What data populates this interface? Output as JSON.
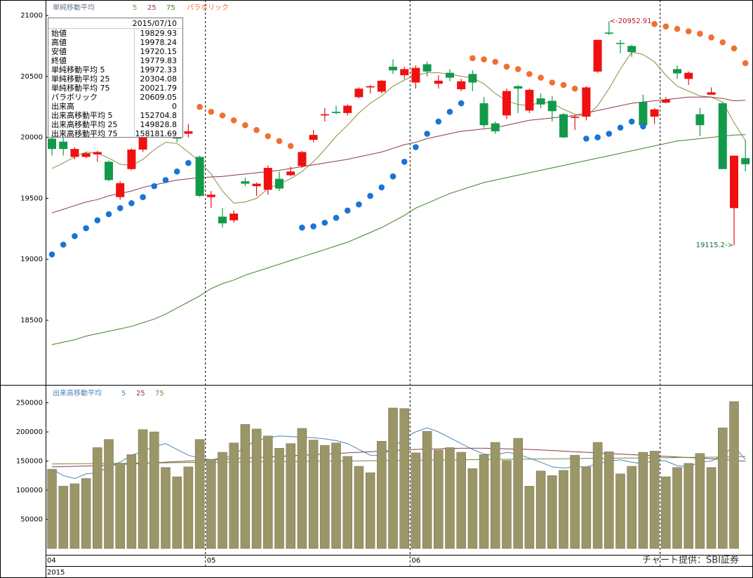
{
  "chart_data": [
    {
      "type": "candlestick",
      "legend_title": "単純移動平均",
      "categories": [
        "04",
        null,
        null,
        null,
        null,
        null,
        null,
        null,
        null,
        null,
        null,
        null,
        null,
        null,
        "05",
        null,
        null,
        null,
        null,
        null,
        null,
        null,
        null,
        null,
        null,
        null,
        null,
        null,
        null,
        null,
        null,
        null,
        "06",
        null,
        null,
        null,
        null,
        null,
        null,
        null,
        null,
        null,
        null,
        null,
        null,
        null,
        null,
        null,
        null,
        null,
        null,
        null,
        null,
        null,
        null,
        null,
        null,
        null,
        null,
        null,
        null,
        null
      ],
      "year": "2015",
      "month_dividers": [
        14,
        32,
        54
      ],
      "open": [
        19990,
        19965,
        19840,
        19840,
        19860,
        19800,
        19510,
        19740,
        19900,
        20050,
        20150,
        20080,
        20030,
        19840,
        19510,
        19350,
        19320,
        19640,
        19600,
        19570,
        19660,
        19690,
        19765,
        19980,
        20180,
        20210,
        20200,
        20330,
        20410,
        20375,
        20580,
        20510,
        20450,
        20600,
        20440,
        20530,
        20395,
        20520,
        20280,
        20115,
        20180,
        20420,
        20220,
        20320,
        20300,
        20190,
        20160,
        20170,
        20540,
        20860,
        20775,
        20750,
        20290,
        20170,
        20285,
        20560,
        20480,
        20190,
        20350,
        20280,
        19420,
        19829.93
      ],
      "high": [
        20035,
        20000,
        19920,
        19880,
        19890,
        19810,
        19640,
        19910,
        20060,
        20160,
        20170,
        20100,
        20110,
        19850,
        19560,
        19420,
        19400,
        19670,
        19630,
        19770,
        19720,
        19760,
        19890,
        20060,
        20240,
        20260,
        20270,
        20410,
        20430,
        20470,
        20640,
        20580,
        20590,
        20620,
        20510,
        20560,
        20480,
        20550,
        20330,
        20130,
        20400,
        20430,
        20400,
        20360,
        20340,
        20200,
        20180,
        20420,
        20800,
        20952.91,
        20800,
        20760,
        20350,
        20240,
        20330,
        20590,
        20540,
        20240,
        20410,
        20290,
        19850,
        19978.24
      ],
      "low": [
        19850,
        19850,
        19820,
        19830,
        19800,
        19640,
        19490,
        19730,
        19880,
        20030,
        20060,
        19960,
        20000,
        19510,
        19420,
        19260,
        19300,
        19600,
        19520,
        19530,
        19560,
        19680,
        19750,
        19960,
        20130,
        20190,
        20180,
        20320,
        20360,
        20360,
        20520,
        20480,
        20400,
        20500,
        20400,
        20460,
        20380,
        20380,
        20080,
        20030,
        20150,
        20200,
        20200,
        20240,
        20130,
        19995,
        20060,
        20140,
        20530,
        20840,
        20690,
        20660,
        20090,
        20110,
        20280,
        20480,
        20430,
        20010,
        20350,
        19740,
        19115.2,
        19720.15
      ],
      "close": [
        19905,
        19905,
        19905,
        19870,
        19880,
        19650,
        19625,
        19900,
        20050,
        20150,
        20080,
        19990,
        20050,
        19520,
        19530,
        19295,
        19375,
        19620,
        19620,
        19750,
        19580,
        19720,
        19880,
        20020,
        20190,
        20200,
        20260,
        20400,
        20420,
        20465,
        20550,
        20560,
        20570,
        20540,
        20465,
        20490,
        20460,
        20450,
        20100,
        20050,
        20380,
        20400,
        20390,
        20270,
        20215,
        20000,
        20170,
        20410,
        20800,
        20850,
        20770,
        20700,
        20100,
        20230,
        20310,
        20525,
        20530,
        20100,
        20370,
        19740,
        19850,
        19779.83
      ],
      "up_color": "#f01010",
      "down_color": "#129a4a",
      "ylim": [
        17970,
        21127
      ],
      "yticks": [
        18500,
        19000,
        19500,
        20000,
        20500,
        21000
      ],
      "series": [
        {
          "name": "5",
          "color": "#8c8a3e",
          "values": [
            19745,
            19790,
            19840,
            19880,
            19870,
            19830,
            19780,
            19770,
            19820,
            19900,
            19960,
            19950,
            19880,
            19800,
            19700,
            19560,
            19460,
            19470,
            19500,
            19580,
            19620,
            19660,
            19720,
            19800,
            19900,
            20010,
            20100,
            20200,
            20280,
            20340,
            20420,
            20470,
            20510,
            20530,
            20530,
            20520,
            20500,
            20490,
            20440,
            20360,
            20300,
            20270,
            20260,
            20290,
            20280,
            20230,
            20190,
            20170,
            20260,
            20400,
            20560,
            20700,
            20680,
            20620,
            20510,
            20420,
            20380,
            20340,
            20330,
            20290,
            20120,
            19972.33
          ]
        },
        {
          "name": "25",
          "color": "#8a3a48",
          "values": [
            19380,
            19410,
            19440,
            19470,
            19490,
            19520,
            19540,
            19560,
            19590,
            19610,
            19630,
            19650,
            19660,
            19670,
            19675,
            19680,
            19690,
            19700,
            19710,
            19720,
            19730,
            19745,
            19760,
            19775,
            19790,
            19805,
            19820,
            19840,
            19860,
            19880,
            19910,
            19940,
            19960,
            19990,
            20010,
            20030,
            20050,
            20060,
            20070,
            20080,
            20100,
            20120,
            20140,
            20150,
            20160,
            20170,
            20180,
            20200,
            20220,
            20240,
            20260,
            20280,
            20290,
            20300,
            20310,
            20320,
            20330,
            20330,
            20330,
            20320,
            20300,
            20304.08
          ]
        },
        {
          "name": "75",
          "color": "#3f7f2a",
          "values": [
            18300,
            18320,
            18340,
            18370,
            18390,
            18410,
            18430,
            18450,
            18480,
            18510,
            18550,
            18600,
            18650,
            18700,
            18760,
            18800,
            18830,
            18870,
            18900,
            18930,
            18960,
            18990,
            19020,
            19050,
            19080,
            19110,
            19140,
            19180,
            19220,
            19260,
            19310,
            19360,
            19420,
            19460,
            19500,
            19540,
            19570,
            19600,
            19630,
            19650,
            19670,
            19690,
            19710,
            19730,
            19750,
            19770,
            19790,
            19810,
            19830,
            19850,
            19870,
            19890,
            19910,
            19930,
            19950,
            19970,
            19980,
            19990,
            20000,
            20010,
            20020,
            20021.79
          ]
        }
      ],
      "sar": {
        "name": "パラボリック",
        "above_color": "#f07030",
        "below_color": "#1a73d6",
        "values": [
          19040,
          19120,
          19190,
          19255,
          19320,
          19370,
          19420,
          19460,
          19510,
          19600,
          19650,
          19720,
          19790,
          20250,
          20210,
          20180,
          20140,
          20100,
          20060,
          20010,
          19970,
          19930,
          19260,
          19270,
          19300,
          19340,
          19400,
          19450,
          19520,
          19590,
          19680,
          19800,
          19920,
          20030,
          20130,
          20210,
          20280,
          20650,
          20640,
          20620,
          20580,
          20560,
          20520,
          20490,
          20450,
          20430,
          20400,
          19990,
          20000,
          20030,
          20080,
          20130,
          20090,
          20930,
          20910,
          20890,
          20870,
          20850,
          20820,
          20780,
          20730,
          20609.05
        ]
      },
      "annotations": [
        {
          "label": "<-20952.91",
          "value": 20952.91,
          "index": 49,
          "color": "#c0102a"
        },
        {
          "label": "19115.2->",
          "value": 19115.2,
          "index": 60,
          "color": "#106a3a"
        }
      ]
    },
    {
      "type": "bar",
      "legend_title": "出来高移動平均",
      "values": [
        136000,
        107000,
        111000,
        120000,
        173000,
        187000,
        145000,
        161000,
        204000,
        200000,
        139000,
        123000,
        140000,
        187000,
        153000,
        165000,
        181000,
        213000,
        205000,
        193000,
        172000,
        180000,
        206000,
        186000,
        177000,
        181000,
        158000,
        141000,
        130000,
        184000,
        241000,
        240000,
        164000,
        201000,
        169000,
        173000,
        165000,
        137000,
        161000,
        182000,
        151000,
        189000,
        107000,
        133000,
        125000,
        134000,
        160000,
        140000,
        182000,
        166000,
        128000,
        141000,
        165000,
        167000,
        123000,
        139000,
        146000,
        163000,
        139000,
        207000,
        252000,
        0
      ],
      "color": "#9a9668",
      "ylim": [
        0,
        280700
      ],
      "yticks": [
        50000,
        100000,
        150000,
        200000,
        250000
      ],
      "series": [
        {
          "name": "5",
          "color": "#4a86b8",
          "values": [
            136000,
            125000,
            120000,
            128000,
            130000,
            140000,
            148000,
            160000,
            167000,
            175000,
            180000,
            170000,
            160000,
            155000,
            152000,
            155000,
            160000,
            175000,
            185000,
            190000,
            193000,
            192000,
            191000,
            190000,
            188000,
            185000,
            180000,
            170000,
            160000,
            160000,
            172000,
            190000,
            200000,
            207000,
            200000,
            190000,
            180000,
            170000,
            162000,
            160000,
            165000,
            162000,
            155000,
            148000,
            140000,
            138000,
            140000,
            140000,
            145000,
            150000,
            152000,
            148000,
            145000,
            152000,
            150000,
            142000,
            140000,
            148000,
            150000,
            160000,
            175000,
            152704.8
          ]
        },
        {
          "name": "25",
          "color": "#8a3a48",
          "values": [
            140000,
            140500,
            141000,
            141500,
            142000,
            143000,
            144000,
            145000,
            146000,
            147000,
            148000,
            149000,
            150000,
            151000,
            152000,
            153000,
            154000,
            155000,
            156000,
            157000,
            158000,
            159000,
            160000,
            161000,
            162000,
            163000,
            164000,
            165000,
            166000,
            167000,
            168000,
            169000,
            170000,
            170500,
            171000,
            171500,
            172000,
            172000,
            172000,
            171500,
            171000,
            170500,
            170000,
            169000,
            168000,
            167000,
            166000,
            165000,
            164000,
            163000,
            162000,
            161000,
            160000,
            159000,
            158000,
            157000,
            156000,
            155000,
            154000,
            153000,
            151000,
            149828.8
          ]
        },
        {
          "name": "75",
          "color": "#6f8a3a",
          "values": [
            145000,
            145200,
            145400,
            145600,
            145800,
            146000,
            146200,
            146400,
            146600,
            146800,
            147000,
            147200,
            147400,
            147600,
            147800,
            148000,
            148200,
            148400,
            148600,
            148800,
            149000,
            149200,
            149400,
            149600,
            149800,
            150000,
            150200,
            150400,
            150600,
            150800,
            151000,
            151200,
            151400,
            151600,
            151800,
            152000,
            152200,
            152400,
            152600,
            152800,
            153000,
            153200,
            153400,
            153600,
            153800,
            154000,
            154200,
            154400,
            154600,
            154800,
            155000,
            155200,
            155400,
            155600,
            155800,
            156000,
            156200,
            156400,
            156600,
            156800,
            157000,
            158181.69
          ]
        }
      ]
    }
  ],
  "tooltip": {
    "date": "2015/07/10",
    "rows": [
      [
        "始値",
        19829.93
      ],
      [
        "高値",
        19978.24
      ],
      [
        "安値",
        19720.15
      ],
      [
        "終値",
        19779.83
      ],
      [
        "単純移動平均 5",
        19972.33
      ],
      [
        "単純移動平均 25",
        20304.08
      ],
      [
        "単純移動平均 75",
        20021.79
      ],
      [
        "パラボリック",
        20609.05
      ],
      [
        "出来高",
        0
      ],
      [
        "出来高移動平均 5",
        152704.8
      ],
      [
        "出来高移動平均 25",
        149828.8
      ],
      [
        "出来高移動平均 75",
        158181.69
      ]
    ]
  },
  "credit": "チャート提供：SBI証券"
}
